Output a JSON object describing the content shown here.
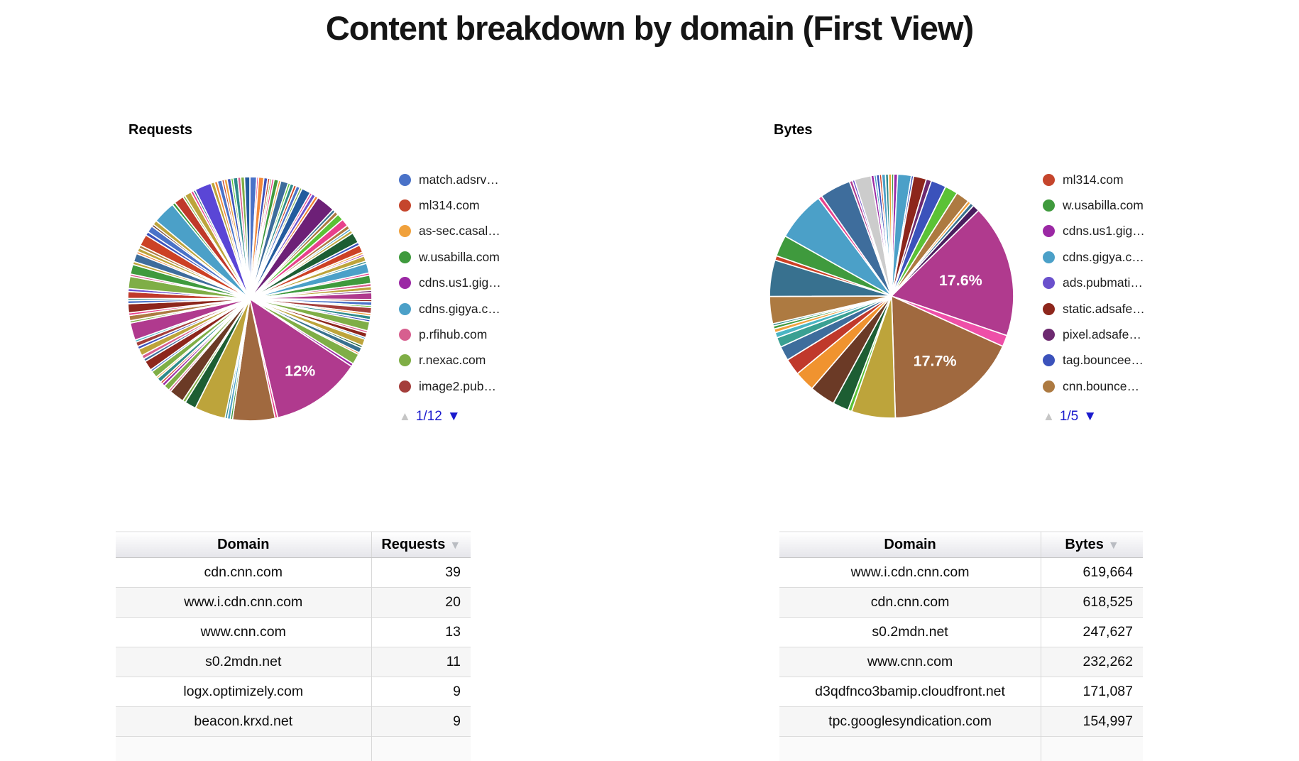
{
  "title": "Content breakdown by domain (First View)",
  "ui_colors": {
    "pagination_blue": "#1a1acd",
    "pagination_disabled": "#c6c6c6",
    "sort_arrow_gray": "#b9bcc2"
  },
  "chart_data": [
    {
      "id": "requests-pie",
      "type": "pie",
      "title": "Requests",
      "slice_format": [
        "percent_of_pie",
        "color",
        "visible_label_optional",
        "label_radius_factor_optional"
      ],
      "legend": {
        "page": "1/12",
        "items": [
          {
            "label": "match.adsrv…",
            "color": "#4a72c8"
          },
          {
            "label": "ml314.com",
            "color": "#c5452c"
          },
          {
            "label": "as-sec.casal…",
            "color": "#f0a13c"
          },
          {
            "label": "w.usabilla.com",
            "color": "#3f9a3d"
          },
          {
            "label": "cdns.us1.gig…",
            "color": "#9b28a4"
          },
          {
            "label": "cdns.gigya.c…",
            "color": "#4ba0c8"
          },
          {
            "label": "p.rfihub.com",
            "color": "#d75f8f"
          },
          {
            "label": "r.nexac.com",
            "color": "#7fae46"
          },
          {
            "label": "image2.pub…",
            "color": "#a43e3b"
          }
        ]
      },
      "labeled_slices": [
        {
          "label": "12%",
          "value": 12
        }
      ],
      "slices": [
        [
          0.9,
          "#4a72c8"
        ],
        [
          0.25,
          "#e8418c"
        ],
        [
          0.7,
          "#f2883a"
        ],
        [
          0.5,
          "#3b52bb"
        ],
        [
          0.3,
          "#c5452c"
        ],
        [
          0.25,
          "#7fae46"
        ],
        [
          0.3,
          "#e8418c"
        ],
        [
          0.6,
          "#3f9a3d"
        ],
        [
          0.3,
          "#f0a13c"
        ],
        [
          1.0,
          "#3e6d9c"
        ],
        [
          0.3,
          "#5bc236"
        ],
        [
          0.5,
          "#2e8b8b"
        ],
        [
          0.35,
          "#cc4125"
        ],
        [
          0.5,
          "#4a72c8"
        ],
        [
          0.3,
          "#7fae46"
        ],
        [
          1.2,
          "#245c9e"
        ],
        [
          0.3,
          "#e8418c"
        ],
        [
          0.5,
          "#6a50cc"
        ],
        [
          0.4,
          "#f07f2f"
        ],
        [
          2.5,
          "#6d2077"
        ],
        [
          0.4,
          "#38718f"
        ],
        [
          0.5,
          "#ad7a41"
        ],
        [
          0.9,
          "#5bc236"
        ],
        [
          1.0,
          "#e8418c"
        ],
        [
          0.5,
          "#ad7a41"
        ],
        [
          0.3,
          "#4ba0c8"
        ],
        [
          0.4,
          "#bda43b"
        ],
        [
          1.4,
          "#1d5e33"
        ],
        [
          0.4,
          "#3b52bb"
        ],
        [
          1.0,
          "#cc4125"
        ],
        [
          0.3,
          "#f0a13c"
        ],
        [
          0.25,
          "#9b28a4"
        ],
        [
          0.7,
          "#bda43b"
        ],
        [
          0.3,
          "#2e8b8b"
        ],
        [
          1.3,
          "#4ba0c8"
        ],
        [
          0.3,
          "#e8418c"
        ],
        [
          1.1,
          "#3f9a3d"
        ],
        [
          0.4,
          "#d75f8f"
        ],
        [
          0.5,
          "#bda43b"
        ],
        [
          0.3,
          "#6d2a70"
        ],
        [
          0.9,
          "#b03a8e"
        ],
        [
          0.3,
          "#8d261c"
        ],
        [
          0.5,
          "#4a72c8"
        ],
        [
          0.25,
          "#5bc236"
        ],
        [
          0.8,
          "#a43e3b"
        ],
        [
          0.3,
          "#f0a13c"
        ],
        [
          0.5,
          "#2e8b8b"
        ],
        [
          0.3,
          "#3b52bb"
        ],
        [
          1.2,
          "#7fae46"
        ],
        [
          0.3,
          "#d75f8f"
        ],
        [
          0.6,
          "#8d261c"
        ],
        [
          0.25,
          "#4ba0c8"
        ],
        [
          0.9,
          "#bda43b"
        ],
        [
          0.3,
          "#1d5e33"
        ],
        [
          0.7,
          "#38718f"
        ],
        [
          0.25,
          "#f07f2f"
        ],
        [
          1.4,
          "#7fae46"
        ],
        [
          0.4,
          "#9b28a4"
        ],
        [
          12,
          "#b03a8e",
          "12%",
          0.72
        ],
        [
          0.35,
          "#e8418c"
        ],
        [
          5.6,
          "#a0693f"
        ],
        [
          0.3,
          "#3f9a3d"
        ],
        [
          0.4,
          "#4ba0c8"
        ],
        [
          0.3,
          "#2e8b8b"
        ],
        [
          4.1,
          "#bda43b"
        ],
        [
          1.5,
          "#1d5e33"
        ],
        [
          0.4,
          "#7fae46"
        ],
        [
          2.0,
          "#6b3a26"
        ],
        [
          0.3,
          "#d75f8f"
        ],
        [
          0.8,
          "#7fae46"
        ],
        [
          0.4,
          "#9b28a4"
        ],
        [
          0.3,
          "#cc4125"
        ],
        [
          0.6,
          "#2e8b8b"
        ],
        [
          0.25,
          "#f0a13c"
        ],
        [
          0.9,
          "#7fae46"
        ],
        [
          0.3,
          "#4a72c8"
        ],
        [
          1.3,
          "#8d261c"
        ],
        [
          0.4,
          "#3e6d9c"
        ],
        [
          0.5,
          "#d75f8f"
        ],
        [
          0.9,
          "#bda43b"
        ],
        [
          0.4,
          "#3b52bb"
        ],
        [
          0.6,
          "#a43e3b"
        ],
        [
          0.3,
          "#4ab5c4"
        ],
        [
          2.3,
          "#b03a8e"
        ],
        [
          0.3,
          "#7fae46"
        ],
        [
          0.7,
          "#ad7a41"
        ],
        [
          0.35,
          "#e8418c"
        ],
        [
          1.2,
          "#8d261c"
        ],
        [
          0.4,
          "#4a72c8"
        ],
        [
          0.3,
          "#2e8b8b"
        ],
        [
          0.9,
          "#c0392b"
        ],
        [
          0.4,
          "#6a50cc"
        ],
        [
          1.6,
          "#7fae46"
        ],
        [
          0.3,
          "#d75f8f"
        ],
        [
          1.3,
          "#3f9a3d"
        ],
        [
          0.4,
          "#bda43b"
        ],
        [
          1.1,
          "#3e6d9c"
        ],
        [
          0.3,
          "#f07f2f"
        ],
        [
          0.5,
          "#bda43b"
        ],
        [
          0.4,
          "#ad7a41"
        ],
        [
          1.5,
          "#cc4125"
        ],
        [
          0.5,
          "#3b52bb"
        ],
        [
          0.9,
          "#4a72c8"
        ],
        [
          0.3,
          "#6b3a26"
        ],
        [
          0.6,
          "#bda43b"
        ],
        [
          3.0,
          "#4ba0c8"
        ],
        [
          0.4,
          "#3f9a3d"
        ],
        [
          1.3,
          "#c0392b"
        ],
        [
          0.3,
          "#7fae46"
        ],
        [
          0.9,
          "#bda43b"
        ],
        [
          0.35,
          "#e8418c"
        ],
        [
          0.3,
          "#38718f"
        ],
        [
          2.2,
          "#5a46d6"
        ],
        [
          0.5,
          "#bda43b"
        ],
        [
          0.4,
          "#f2883a"
        ],
        [
          0.6,
          "#4a72c8"
        ],
        [
          0.3,
          "#c5452c"
        ],
        [
          0.4,
          "#f0a13c"
        ],
        [
          0.5,
          "#3b52bb"
        ],
        [
          0.3,
          "#5bc236"
        ],
        [
          0.6,
          "#2e8b8b"
        ],
        [
          0.4,
          "#d75f8f"
        ],
        [
          0.5,
          "#7fae46"
        ],
        [
          0.7,
          "#245c9e"
        ]
      ]
    },
    {
      "id": "bytes-pie",
      "type": "pie",
      "title": "Bytes",
      "slice_format": [
        "percent_of_pie",
        "color",
        "visible_label_optional",
        "label_radius_factor_optional"
      ],
      "legend": {
        "page": "1/5",
        "items": [
          {
            "label": "ml314.com",
            "color": "#c5452c"
          },
          {
            "label": "w.usabilla.com",
            "color": "#3f9a3d"
          },
          {
            "label": "cdns.us1.gig…",
            "color": "#9b28a4"
          },
          {
            "label": "cdns.gigya.c…",
            "color": "#4ba0c8"
          },
          {
            "label": "ads.pubmati…",
            "color": "#6a50cc"
          },
          {
            "label": "static.adsafe…",
            "color": "#8d261c"
          },
          {
            "label": "pixel.adsafe…",
            "color": "#6d2a70"
          },
          {
            "label": "tag.bouncee…",
            "color": "#3b52bb"
          },
          {
            "label": "cnn.bounce…",
            "color": "#ad7a41"
          }
        ]
      },
      "labeled_slices": [
        {
          "label": "17.6%",
          "value": 17.6
        },
        {
          "label": "17.7%",
          "value": 17.7
        }
      ],
      "slices": [
        [
          0.3,
          "#3f9a3d"
        ],
        [
          0.5,
          "#9b28a4"
        ],
        [
          1.8,
          "#4ba0c8"
        ],
        [
          0.3,
          "#3b52bb"
        ],
        [
          1.7,
          "#8d261c"
        ],
        [
          0.7,
          "#6d2a70"
        ],
        [
          2.0,
          "#3b52bb"
        ],
        [
          1.7,
          "#5bc236"
        ],
        [
          1.8,
          "#ad7a41"
        ],
        [
          0.4,
          "#f0a13c"
        ],
        [
          0.5,
          "#38718f"
        ],
        [
          0.9,
          "#4a1d5e"
        ],
        [
          17.6,
          "#b03a8e",
          "17.6%",
          0.58
        ],
        [
          1.5,
          "#ee4fa8"
        ],
        [
          17.7,
          "#a0693f",
          "17.7%",
          0.64
        ],
        [
          5.8,
          "#bda43b"
        ],
        [
          0.5,
          "#5bc236"
        ],
        [
          2.1,
          "#1d5e33"
        ],
        [
          3.4,
          "#6b3a26"
        ],
        [
          2.7,
          "#f0932f"
        ],
        [
          2.2,
          "#c0392b"
        ],
        [
          1.9,
          "#3e6d9c"
        ],
        [
          1.3,
          "#3aa092"
        ],
        [
          0.7,
          "#4ab5c4"
        ],
        [
          0.5,
          "#f0a13c"
        ],
        [
          0.4,
          "#3f9a3d"
        ],
        [
          0.3,
          "#2e8b8b"
        ],
        [
          3.6,
          "#ad7a41"
        ],
        [
          4.8,
          "#38718f"
        ],
        [
          0.6,
          "#cc4125"
        ],
        [
          2.8,
          "#3f9a3d"
        ],
        [
          6.6,
          "#4ba0c8"
        ],
        [
          0.5,
          "#e8418c"
        ],
        [
          4.1,
          "#3e6d9c"
        ],
        [
          0.4,
          "#b03a8e"
        ],
        [
          0.3,
          "#6a50cc"
        ],
        [
          2.2,
          "#cccccc"
        ],
        [
          0.4,
          "#9b28a4"
        ],
        [
          0.3,
          "#4ba0c8"
        ],
        [
          0.4,
          "#3b52bb"
        ],
        [
          0.3,
          "#cc4125"
        ],
        [
          0.5,
          "#4ba0c8"
        ],
        [
          0.4,
          "#2e8b8b"
        ],
        [
          0.4,
          "#f0a13c"
        ]
      ]
    },
    {
      "id": "requests-table",
      "type": "table",
      "columns": [
        "Domain",
        "Requests"
      ],
      "sorted_by": "Requests",
      "sort_direction": "descending",
      "rows": [
        [
          "cdn.cnn.com",
          "39"
        ],
        [
          "www.i.cdn.cnn.com",
          "20"
        ],
        [
          "www.cnn.com",
          "13"
        ],
        [
          "s0.2mdn.net",
          "11"
        ],
        [
          "logx.optimizely.com",
          "9"
        ],
        [
          "beacon.krxd.net",
          "9"
        ]
      ]
    },
    {
      "id": "bytes-table",
      "type": "table",
      "columns": [
        "Domain",
        "Bytes"
      ],
      "sorted_by": "Bytes",
      "sort_direction": "descending",
      "rows": [
        [
          "www.i.cdn.cnn.com",
          "619,664"
        ],
        [
          "cdn.cnn.com",
          "618,525"
        ],
        [
          "s0.2mdn.net",
          "247,627"
        ],
        [
          "www.cnn.com",
          "232,262"
        ],
        [
          "d3qdfnco3bamip.cloudfront.net",
          "171,087"
        ],
        [
          "tpc.googlesyndication.com",
          "154,997"
        ]
      ]
    }
  ]
}
